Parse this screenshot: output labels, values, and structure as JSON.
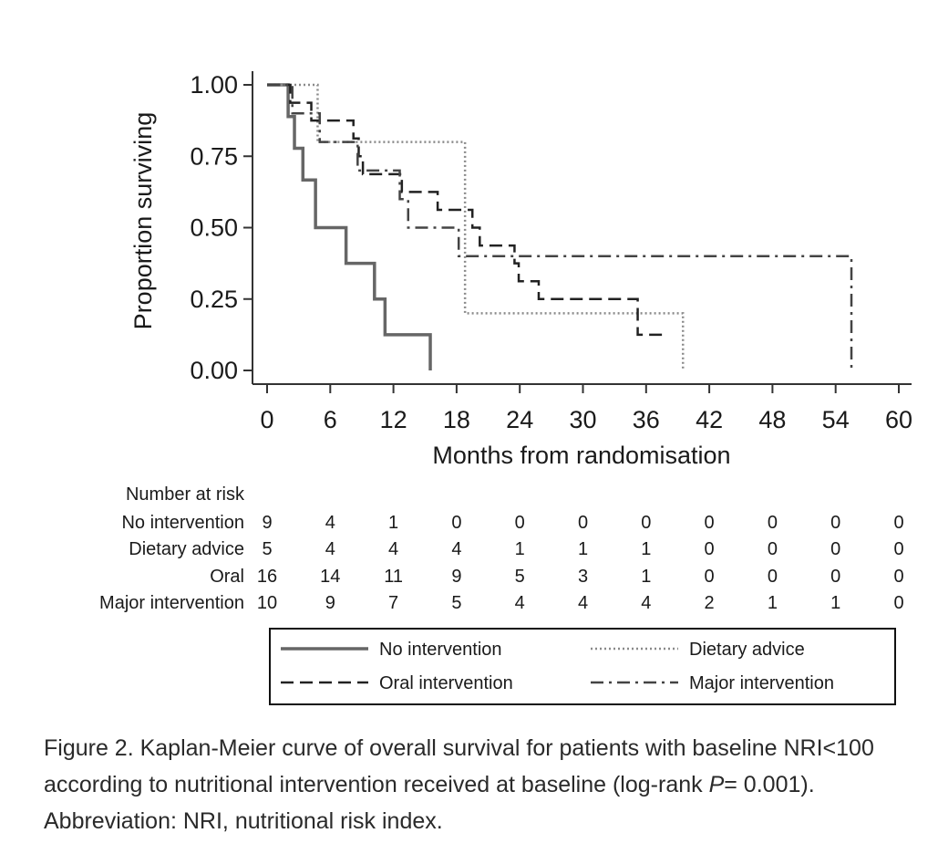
{
  "chart_data": {
    "type": "line",
    "subtype": "kaplan-meier step",
    "xlabel": "Months from randomisation",
    "ylabel": "Proportion surviving",
    "xlim": [
      0,
      60
    ],
    "ylim": [
      0,
      1
    ],
    "xticks": [
      0,
      6,
      12,
      18,
      24,
      30,
      36,
      42,
      48,
      54,
      60
    ],
    "yticks": [
      0,
      0.25,
      0.5,
      0.75,
      1.0
    ],
    "ytick_labels": [
      "0.00",
      "0.25",
      "0.50",
      "0.75",
      "1.00"
    ],
    "series": [
      {
        "name": "No intervention",
        "dash": "solid",
        "color": "#666666",
        "steps": [
          [
            0,
            1.0
          ],
          [
            2,
            0.889
          ],
          [
            2.6,
            0.778
          ],
          [
            3.4,
            0.667
          ],
          [
            4.6,
            0.5
          ],
          [
            7.5,
            0.375
          ],
          [
            10.2,
            0.25
          ],
          [
            11.2,
            0.125
          ],
          [
            15.5,
            0.0
          ]
        ],
        "end": 15.5
      },
      {
        "name": "Dietary advice",
        "dash": "dotted",
        "color": "#8a8a8a",
        "steps": [
          [
            0,
            1.0
          ],
          [
            4.8,
            0.8
          ],
          [
            18.8,
            0.2
          ],
          [
            39.5,
            0.0
          ]
        ],
        "end": 39.5
      },
      {
        "name": "Oral intervention",
        "dash": "dashed",
        "color": "#222222",
        "steps": [
          [
            0,
            1.0
          ],
          [
            2.2,
            0.9375
          ],
          [
            4.2,
            0.875
          ],
          [
            8.2,
            0.8125
          ],
          [
            8.7,
            0.75
          ],
          [
            9.1,
            0.6875
          ],
          [
            12.8,
            0.625
          ],
          [
            16.2,
            0.5625
          ],
          [
            19.5,
            0.5
          ],
          [
            20.2,
            0.4375
          ],
          [
            23.5,
            0.375
          ],
          [
            23.9,
            0.3125
          ],
          [
            25.8,
            0.25
          ],
          [
            35.2,
            0.125
          ]
        ],
        "end": 38.0
      },
      {
        "name": "Major intervention",
        "dash": "dashdot",
        "color": "#444444",
        "steps": [
          [
            0,
            1.0
          ],
          [
            2.4,
            0.9
          ],
          [
            5,
            0.8
          ],
          [
            8.6,
            0.7
          ],
          [
            12.6,
            0.6
          ],
          [
            13.4,
            0.5
          ],
          [
            18.2,
            0.4
          ],
          [
            55.5,
            0.0
          ]
        ],
        "end": 55.5
      }
    ],
    "risk_table": {
      "title": "Number at risk",
      "rows": [
        {
          "label": "No intervention",
          "values": [
            9,
            4,
            1,
            0,
            0,
            0,
            0,
            0,
            0,
            0,
            0
          ]
        },
        {
          "label": "Dietary advice",
          "values": [
            5,
            4,
            4,
            4,
            1,
            1,
            1,
            0,
            0,
            0,
            0
          ]
        },
        {
          "label": "Oral",
          "values": [
            16,
            14,
            11,
            9,
            5,
            3,
            1,
            0,
            0,
            0,
            0
          ]
        },
        {
          "label": "Major intervention",
          "values": [
            10,
            9,
            7,
            5,
            4,
            4,
            4,
            2,
            1,
            1,
            0
          ]
        }
      ]
    },
    "legend": {
      "position": "bottom",
      "entries": [
        "No intervention",
        "Dietary advice",
        "Oral intervention",
        "Major intervention"
      ]
    }
  },
  "caption": {
    "part1": "Figure 2. Kaplan-Meier curve of overall survival for patients with baseline NRI<100 according to nutritional intervention received at baseline (log-rank ",
    "p_symbol": "P",
    "part2": "= 0.001). Abbreviation: NRI, nutritional risk index."
  }
}
